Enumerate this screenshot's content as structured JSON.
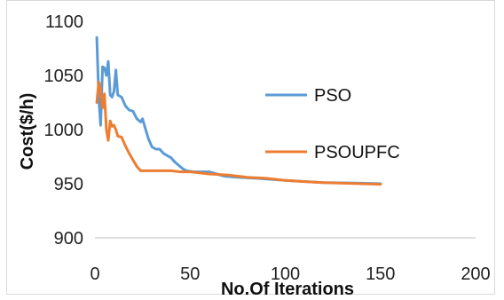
{
  "chart_data": {
    "type": "line",
    "title": "",
    "xlabel": "No.Of Iterations",
    "ylabel": "Cost($/h)",
    "xlim": [
      0,
      200
    ],
    "ylim": [
      900,
      1100
    ],
    "x_ticks": [
      0,
      50,
      100,
      150,
      200
    ],
    "y_ticks": [
      900,
      950,
      1000,
      1050,
      1100
    ],
    "grid": false,
    "legend_position": "right",
    "series": [
      {
        "name": "PSO",
        "color": "#5b9bd5",
        "points": [
          [
            1,
            1085
          ],
          [
            2,
            1030
          ],
          [
            3,
            1004
          ],
          [
            4,
            1058
          ],
          [
            5,
            1057
          ],
          [
            6,
            1050
          ],
          [
            7,
            1063
          ],
          [
            8,
            1032
          ],
          [
            9,
            1030
          ],
          [
            10,
            1035
          ],
          [
            11,
            1055
          ],
          [
            12,
            1032
          ],
          [
            14,
            1030
          ],
          [
            16,
            1022
          ],
          [
            18,
            1018
          ],
          [
            20,
            1017
          ],
          [
            22,
            1010
          ],
          [
            24,
            1007
          ],
          [
            25,
            1010
          ],
          [
            27,
            998
          ],
          [
            28,
            992
          ],
          [
            30,
            984
          ],
          [
            32,
            982
          ],
          [
            34,
            982
          ],
          [
            36,
            978
          ],
          [
            38,
            976
          ],
          [
            40,
            974
          ],
          [
            42,
            970
          ],
          [
            44,
            967
          ],
          [
            46,
            964
          ],
          [
            48,
            962
          ],
          [
            52,
            961
          ],
          [
            60,
            961
          ],
          [
            64,
            959
          ],
          [
            68,
            957
          ],
          [
            75,
            956
          ],
          [
            85,
            955
          ],
          [
            100,
            953
          ],
          [
            120,
            951
          ],
          [
            140,
            950.5
          ],
          [
            150,
            950
          ]
        ]
      },
      {
        "name": "PSOUPFC",
        "color": "#ed7d31",
        "points": [
          [
            1,
            1025
          ],
          [
            2,
            1044
          ],
          [
            3,
            1037
          ],
          [
            4,
            1020
          ],
          [
            5,
            1033
          ],
          [
            6,
            1000
          ],
          [
            7,
            990
          ],
          [
            8,
            1008
          ],
          [
            9,
            1003
          ],
          [
            10,
            1004
          ],
          [
            11,
            1000
          ],
          [
            12,
            994
          ],
          [
            14,
            993
          ],
          [
            16,
            985
          ],
          [
            18,
            978
          ],
          [
            20,
            972
          ],
          [
            22,
            966
          ],
          [
            24,
            962
          ],
          [
            30,
            962
          ],
          [
            40,
            962
          ],
          [
            45,
            961
          ],
          [
            50,
            961
          ],
          [
            55,
            960
          ],
          [
            60,
            959
          ],
          [
            70,
            958
          ],
          [
            80,
            956
          ],
          [
            90,
            955
          ],
          [
            100,
            953
          ],
          [
            110,
            952
          ],
          [
            120,
            951
          ],
          [
            130,
            950.5
          ],
          [
            140,
            950
          ],
          [
            150,
            949.5
          ]
        ]
      }
    ]
  }
}
